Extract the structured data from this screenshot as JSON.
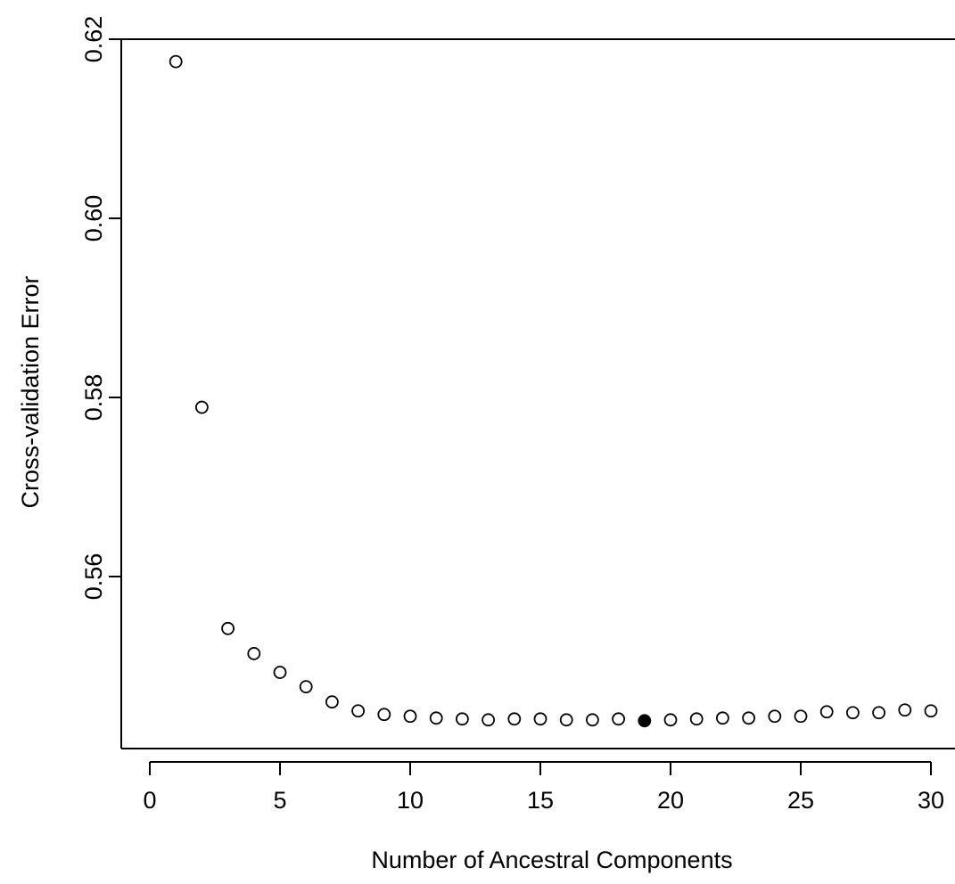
{
  "chart_data": {
    "type": "scatter",
    "xlabel": "Number of Ancestral Components",
    "ylabel": "Cross-validation Error",
    "xlim": [
      0,
      30
    ],
    "ylim": [
      0.544,
      0.62
    ],
    "xticks": [
      0,
      5,
      10,
      15,
      20,
      25,
      30
    ],
    "yticks": [
      0.56,
      0.58,
      0.6,
      0.62
    ],
    "xtick_labels": [
      "0",
      "5",
      "10",
      "15",
      "20",
      "25",
      "30"
    ],
    "ytick_labels": [
      "0.56",
      "0.58",
      "0.60",
      "0.62"
    ],
    "grid": false,
    "legend": "none",
    "marker": "open circle",
    "highlight": {
      "x": 19,
      "style": "filled circle"
    },
    "x": [
      1,
      2,
      3,
      4,
      5,
      6,
      7,
      8,
      9,
      10,
      11,
      12,
      13,
      14,
      15,
      16,
      17,
      18,
      19,
      20,
      21,
      22,
      23,
      24,
      25,
      26,
      27,
      28,
      29,
      30
    ],
    "y": [
      0.6175,
      0.5789,
      0.5542,
      0.5514,
      0.5493,
      0.5477,
      0.546,
      0.545,
      0.5446,
      0.5444,
      0.5442,
      0.5441,
      0.544,
      0.5441,
      0.5441,
      0.544,
      0.544,
      0.5441,
      0.5439,
      0.544,
      0.5441,
      0.5442,
      0.5442,
      0.5444,
      0.5444,
      0.5449,
      0.5448,
      0.5448,
      0.5451,
      0.545
    ]
  }
}
